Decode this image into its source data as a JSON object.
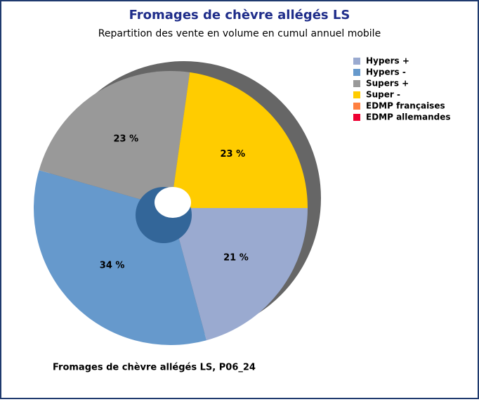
{
  "chart_data": {
    "type": "pie",
    "title": "Fromages de chèvre allégés LS",
    "subtitle": "Repartition des vente en volume en cumul annuel mobile",
    "caption": "Fromages de chèvre allégés LS, P06_24",
    "categories": [
      "Hypers +",
      "Hypers -",
      "Supers +",
      "Super -",
      "EDMP françaises",
      "EDMP allemandes"
    ],
    "values": [
      21,
      34,
      23,
      23,
      0,
      0
    ],
    "value_labels": [
      "21 %",
      "34 %",
      "23 %",
      "23 %",
      null,
      null
    ],
    "colors": [
      "#9aaad0",
      "#6699cc",
      "#999999",
      "#ffcc00",
      "#ff7f3f",
      "#ee0033"
    ],
    "legend": "right"
  }
}
